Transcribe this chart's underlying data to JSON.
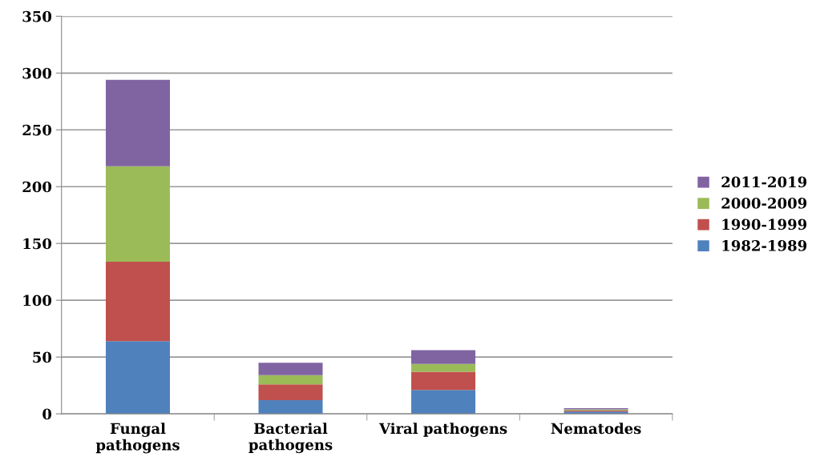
{
  "chart_data": {
    "type": "bar",
    "stacked": true,
    "categories": [
      "Fungal\npathogens",
      "Bacterial\npathogens",
      "Viral pathogens",
      "Nematodes"
    ],
    "series": [
      {
        "name": "1982-1989",
        "color": "#4f81bd",
        "values": [
          64,
          12,
          21,
          2
        ]
      },
      {
        "name": "1990-1999",
        "color": "#c0504d",
        "values": [
          70,
          14,
          16,
          1
        ]
      },
      {
        "name": "2000-2009",
        "color": "#9bbb59",
        "values": [
          84,
          8,
          7,
          1
        ]
      },
      {
        "name": "2011-2019",
        "color": "#8064a2",
        "values": [
          76,
          11,
          12,
          1
        ]
      }
    ],
    "ylim": [
      0,
      350
    ],
    "yticks": [
      0,
      50,
      100,
      150,
      200,
      250,
      300,
      350
    ],
    "grid": "y",
    "legend": "right"
  }
}
